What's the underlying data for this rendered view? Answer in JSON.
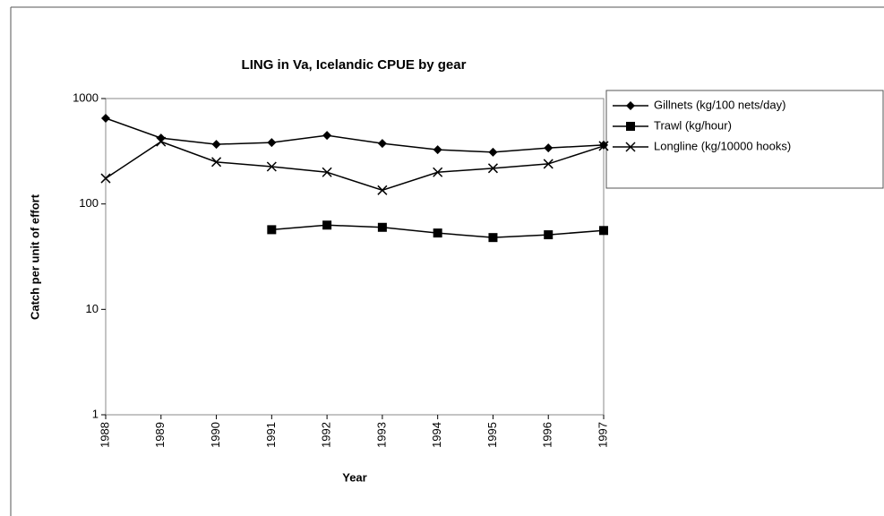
{
  "chart_data": {
    "type": "line",
    "title": "LING in Va, Icelandic CPUE by gear",
    "xlabel": "Year",
    "ylabel": "Catch per unit of effort",
    "categories": [
      "1988",
      "1989",
      "1990",
      "1991",
      "1992",
      "1993",
      "1994",
      "1995",
      "1996",
      "1997"
    ],
    "series": [
      {
        "name": "Gillnets (kg/100 nets/day)",
        "color": "#000000",
        "marker": "diamond",
        "values": [
          650,
          422,
          368,
          382,
          447,
          375,
          327,
          310,
          340,
          362
        ]
      },
      {
        "name": "Trawl (kg/hour)",
        "color": "#000000",
        "marker": "square",
        "values": [
          null,
          null,
          null,
          57,
          63,
          60,
          53,
          48,
          51,
          56
        ]
      },
      {
        "name": "Longline (kg/10000 hooks)",
        "color": "#000000",
        "marker": "x",
        "values": [
          175,
          390,
          250,
          226,
          200,
          135,
          200,
          218,
          240,
          355
        ]
      }
    ],
    "ylim": [
      1,
      1000
    ],
    "yticks": [
      1,
      10,
      100,
      1000
    ],
    "log": true,
    "grid": false,
    "legend": "right"
  }
}
